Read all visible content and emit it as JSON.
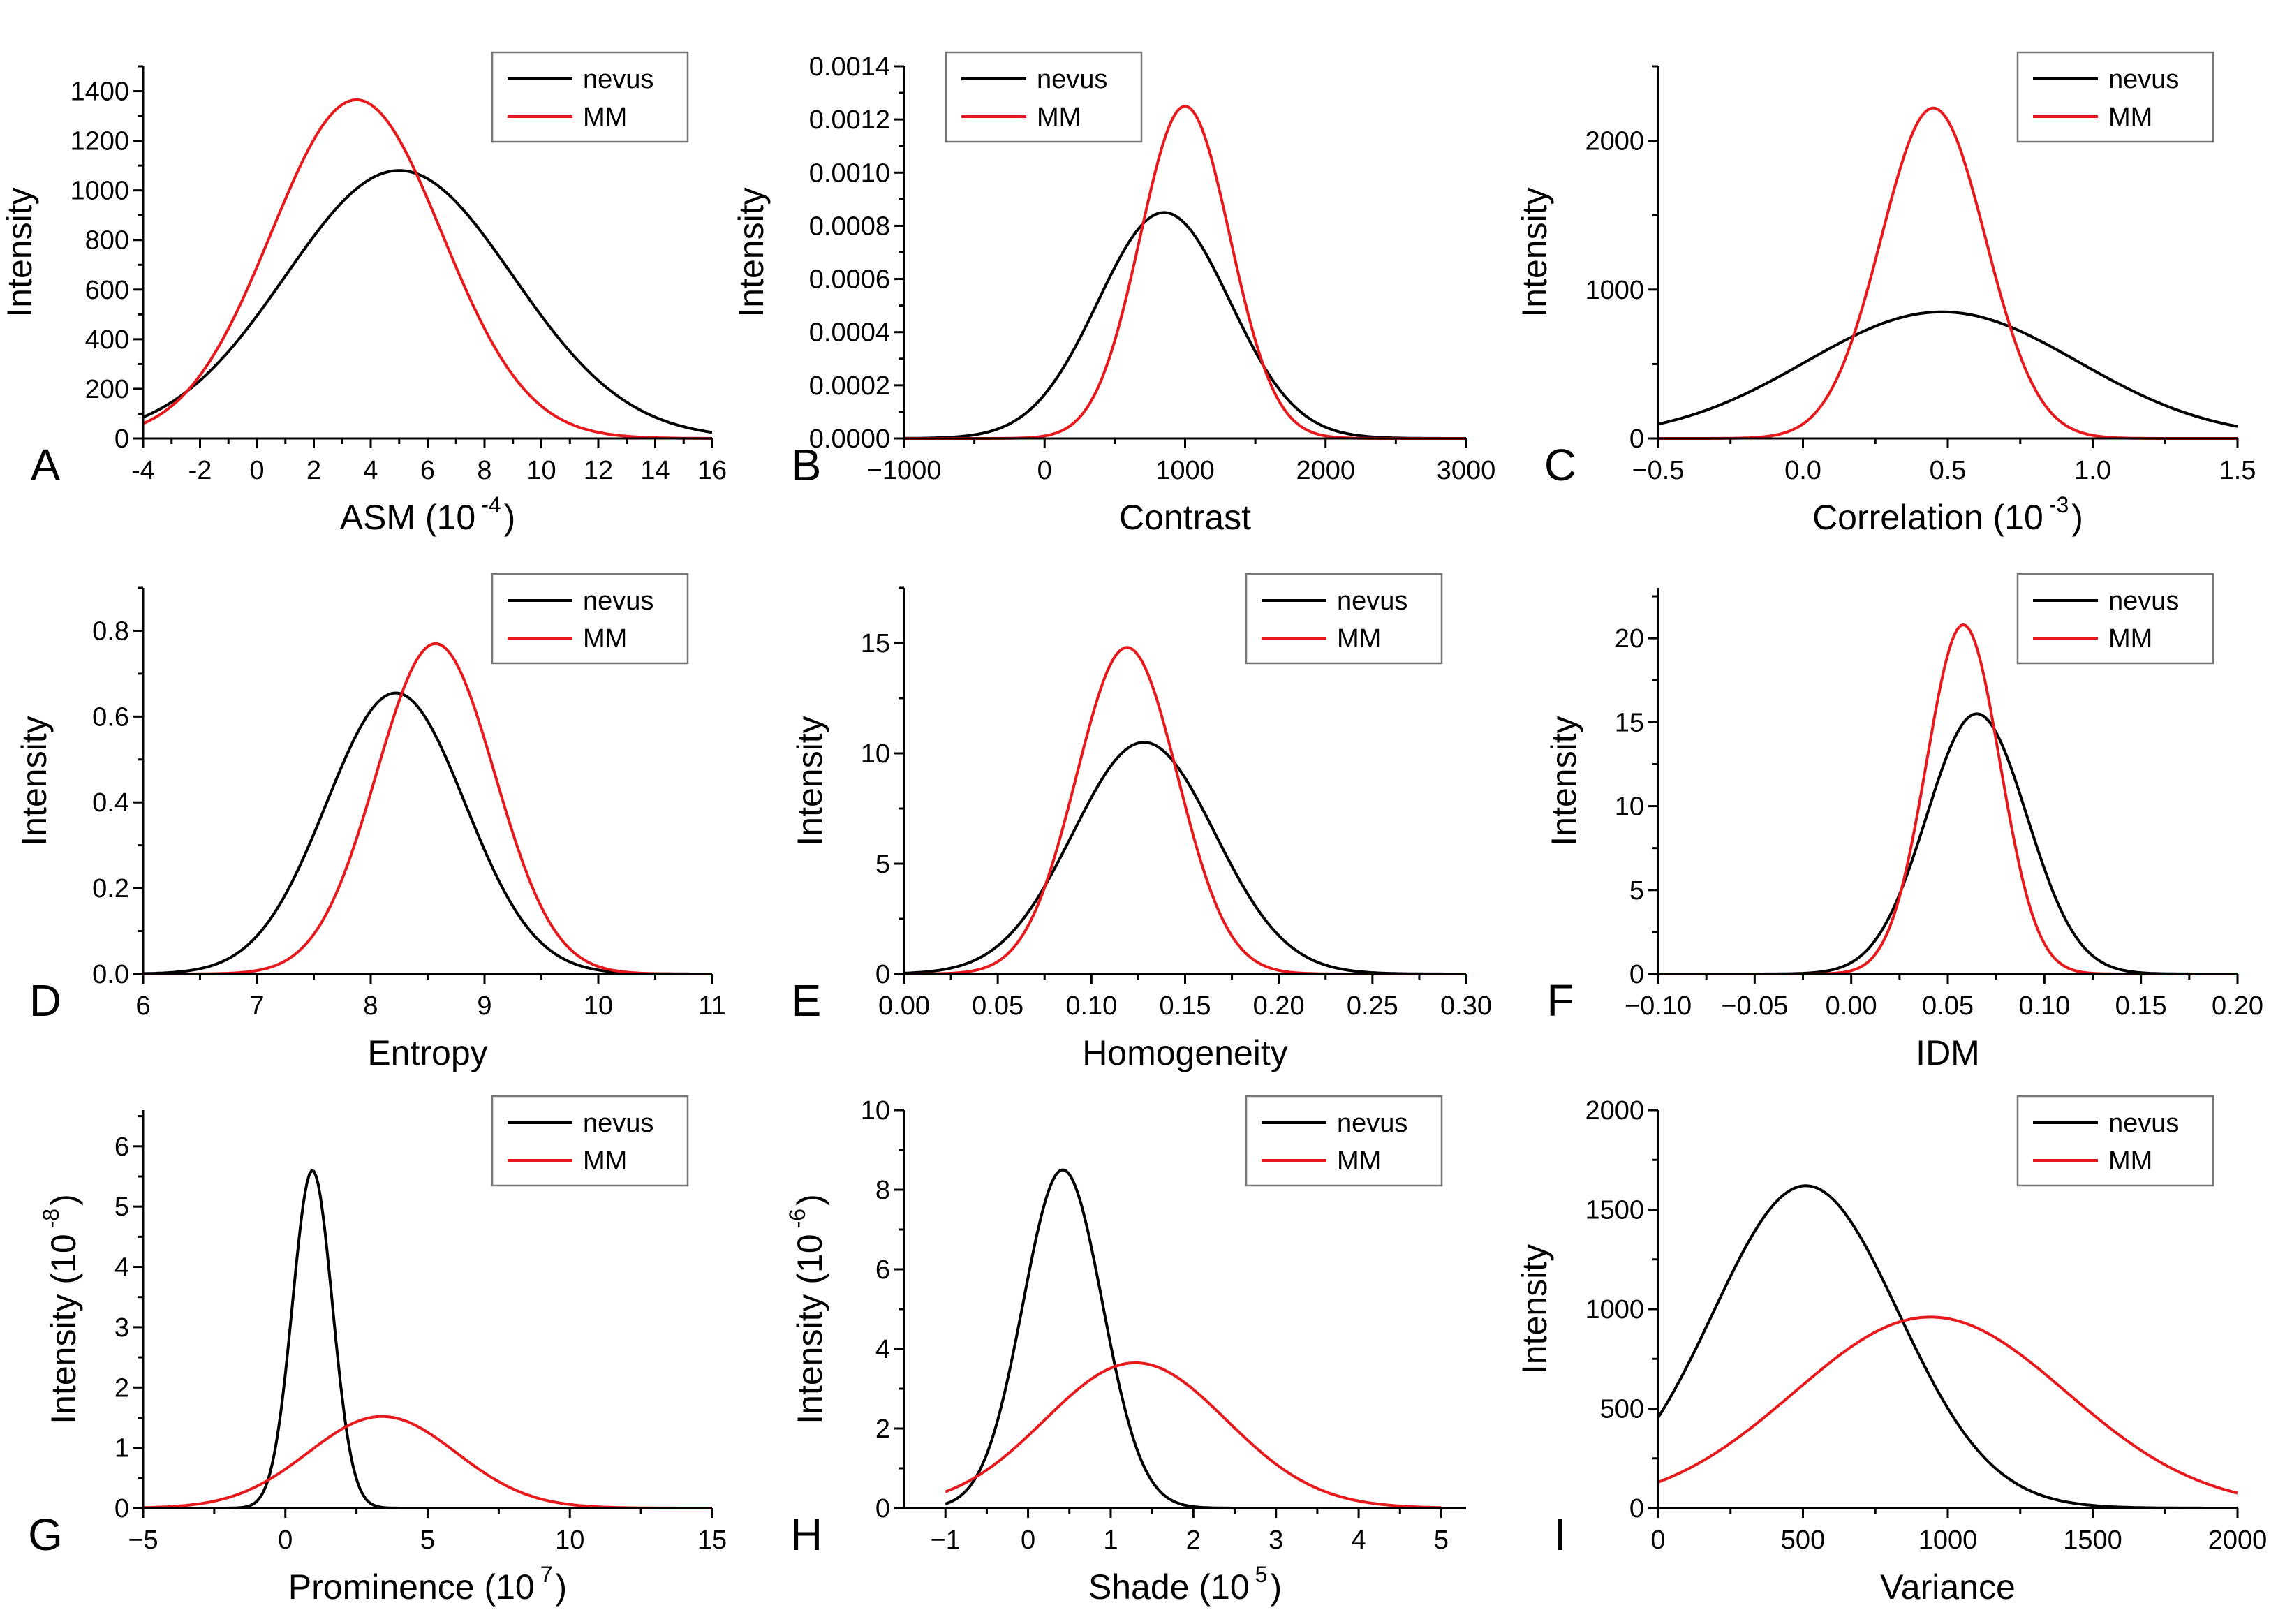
{
  "figure_title": "",
  "colors": {
    "nevus": "#000000",
    "MM": "#e8191c"
  },
  "chart_data": [
    {
      "panel": "A",
      "type": "line",
      "xlabel": "ASM (10",
      "xlabel_exp": "-4",
      "xlabel_close": ")",
      "ylabel": "Intensity",
      "ylabel_exp": "",
      "ylabel_close": "",
      "xlim": [
        -4,
        16
      ],
      "ylim": [
        0,
        1500
      ],
      "xticks": [
        -4,
        -2,
        0,
        2,
        4,
        6,
        8,
        10,
        12,
        14,
        16
      ],
      "xtick_labels": [
        "-4",
        "-2",
        "0",
        "2",
        "4",
        "6",
        "8",
        "10",
        "12",
        "14",
        "16"
      ],
      "yticks": [
        0,
        200,
        400,
        600,
        800,
        1000,
        1200,
        1400
      ],
      "ytick_labels": [
        "0",
        "200",
        "400",
        "600",
        "800",
        "1000",
        "1200",
        "1400"
      ],
      "legend": [
        "nevus",
        "MM"
      ],
      "legend_position": "top-right",
      "series": [
        {
          "name": "nevus",
          "mean": 5.0,
          "sd": 4.0,
          "peak": 1080
        },
        {
          "name": "MM",
          "mean": 3.5,
          "sd": 3.0,
          "peak": 1365
        }
      ]
    },
    {
      "panel": "B",
      "type": "line",
      "xlabel": "Contrast",
      "xlabel_exp": "",
      "xlabel_close": "",
      "ylabel": "Intensity",
      "ylabel_exp": "",
      "ylabel_close": "",
      "xlim": [
        -1000,
        3000
      ],
      "ylim": [
        0,
        0.0014
      ],
      "xticks": [
        -1000,
        0,
        1000,
        2000,
        3000
      ],
      "xtick_labels": [
        "−1000",
        "0",
        "1000",
        "2000",
        "3000"
      ],
      "yticks": [
        0,
        0.0002,
        0.0004,
        0.0006,
        0.0008,
        0.001,
        0.0012,
        0.0014
      ],
      "ytick_labels": [
        "0.0000",
        "0.0002",
        "0.0004",
        "0.0006",
        "0.0008",
        "0.0010",
        "0.0012",
        "0.0014"
      ],
      "legend": [
        "nevus",
        "MM"
      ],
      "legend_position": "top-left",
      "series": [
        {
          "name": "nevus",
          "mean": 850,
          "sd": 470,
          "peak": 0.00085
        },
        {
          "name": "MM",
          "mean": 1000,
          "sd": 320,
          "peak": 0.00125
        }
      ]
    },
    {
      "panel": "C",
      "type": "line",
      "xlabel": "Correlation (10",
      "xlabel_exp": "-3",
      "xlabel_close": ")",
      "ylabel": "Intensity",
      "ylabel_exp": "",
      "ylabel_close": "",
      "xlim": [
        -0.5,
        1.5
      ],
      "ylim": [
        0,
        2500
      ],
      "xticks": [
        -0.5,
        0.0,
        0.5,
        1.0,
        1.5
      ],
      "xtick_labels": [
        "−0.5",
        "0.0",
        "0.5",
        "1.0",
        "1.5"
      ],
      "yticks": [
        0,
        1000,
        2000
      ],
      "ytick_labels": [
        "0",
        "1000",
        "2000"
      ],
      "legend": [
        "nevus",
        "MM"
      ],
      "legend_position": "top-right",
      "series": [
        {
          "name": "nevus",
          "mean": 0.48,
          "sd": 0.47,
          "peak": 850
        },
        {
          "name": "MM",
          "mean": 0.45,
          "sd": 0.18,
          "peak": 2220
        }
      ]
    },
    {
      "panel": "D",
      "type": "line",
      "xlabel": "Entropy",
      "xlabel_exp": "",
      "xlabel_close": "",
      "ylabel": "Intensity",
      "ylabel_exp": "",
      "ylabel_close": "",
      "xlim": [
        6,
        11
      ],
      "ylim": [
        0,
        0.9
      ],
      "xticks": [
        6,
        7,
        8,
        9,
        10,
        11
      ],
      "xtick_labels": [
        "6",
        "7",
        "8",
        "9",
        "10",
        "11"
      ],
      "yticks": [
        0,
        0.2,
        0.4,
        0.6,
        0.8
      ],
      "ytick_labels": [
        "0.0",
        "0.2",
        "0.4",
        "0.6",
        "0.8"
      ],
      "legend": [
        "nevus",
        "MM"
      ],
      "legend_position": "top-right",
      "series": [
        {
          "name": "nevus",
          "mean": 8.22,
          "sd": 0.61,
          "peak": 0.655
        },
        {
          "name": "MM",
          "mean": 8.57,
          "sd": 0.52,
          "peak": 0.77
        }
      ]
    },
    {
      "panel": "E",
      "type": "line",
      "xlabel": "Homogeneity",
      "xlabel_exp": "",
      "xlabel_close": "",
      "ylabel": "Intensity",
      "ylabel_exp": "",
      "ylabel_close": "",
      "xlim": [
        0,
        0.3
      ],
      "ylim": [
        0,
        17.5
      ],
      "xticks": [
        0,
        0.05,
        0.1,
        0.15,
        0.2,
        0.25,
        0.3
      ],
      "xtick_labels": [
        "0.00",
        "0.05",
        "0.10",
        "0.15",
        "0.20",
        "0.25",
        "0.30"
      ],
      "yticks": [
        0,
        5,
        10,
        15
      ],
      "ytick_labels": [
        "0",
        "5",
        "10",
        "15"
      ],
      "legend": [
        "nevus",
        "MM"
      ],
      "legend_position": "top-right",
      "series": [
        {
          "name": "nevus",
          "mean": 0.128,
          "sd": 0.038,
          "peak": 10.5
        },
        {
          "name": "MM",
          "mean": 0.119,
          "sd": 0.027,
          "peak": 14.8
        }
      ]
    },
    {
      "panel": "F",
      "type": "line",
      "xlabel": "IDM",
      "xlabel_exp": "",
      "xlabel_close": "",
      "ylabel": "Intensity",
      "ylabel_exp": "",
      "ylabel_close": "",
      "xlim": [
        -0.1,
        0.2
      ],
      "ylim": [
        0,
        23
      ],
      "xticks": [
        -0.1,
        -0.05,
        0,
        0.05,
        0.1,
        0.15,
        0.2
      ],
      "xtick_labels": [
        "−0.10",
        "−0.05",
        "0.00",
        "0.05",
        "0.10",
        "0.15",
        "0.20"
      ],
      "yticks": [
        0,
        5,
        10,
        15,
        20
      ],
      "ytick_labels": [
        "0",
        "5",
        "10",
        "15",
        "20"
      ],
      "legend": [
        "nevus",
        "MM"
      ],
      "legend_position": "top-right",
      "series": [
        {
          "name": "nevus",
          "mean": 0.065,
          "sd": 0.026,
          "peak": 15.5
        },
        {
          "name": "MM",
          "mean": 0.058,
          "sd": 0.019,
          "peak": 20.8
        }
      ]
    },
    {
      "panel": "G",
      "type": "line",
      "xlabel": "Prominence (10",
      "xlabel_exp": "7",
      "xlabel_close": ")",
      "ylabel": "Intensity (10",
      "ylabel_exp": "-8",
      "ylabel_close": ")",
      "xlim": [
        -5,
        15
      ],
      "ylim": [
        0,
        6.6
      ],
      "xticks": [
        -5,
        0,
        5,
        10,
        15
      ],
      "xtick_labels": [
        "−5",
        "0",
        "5",
        "10",
        "15"
      ],
      "yticks": [
        0,
        1,
        2,
        3,
        4,
        5,
        6
      ],
      "ytick_labels": [
        "0",
        "1",
        "2",
        "3",
        "4",
        "5",
        "6"
      ],
      "legend": [
        "nevus",
        "MM"
      ],
      "legend_position": "top-right",
      "series": [
        {
          "name": "nevus",
          "mean": 0.95,
          "sd": 0.7,
          "peak": 5.6
        },
        {
          "name": "MM",
          "mean": 3.4,
          "sd": 2.6,
          "peak": 1.52
        }
      ]
    },
    {
      "panel": "H",
      "type": "line",
      "xlabel": "Shade (10",
      "xlabel_exp": "5",
      "xlabel_close": ")",
      "ylabel": "Intensity (10",
      "ylabel_exp": "-6",
      "ylabel_close": ")",
      "xlim": [
        -1.5,
        5.3
      ],
      "ylim": [
        0,
        10
      ],
      "xticks": [
        -1,
        0,
        1,
        2,
        3,
        4,
        5
      ],
      "xtick_labels": [
        "−1",
        "0",
        "1",
        "2",
        "3",
        "4",
        "5"
      ],
      "yticks": [
        0,
        2,
        4,
        6,
        8,
        10
      ],
      "ytick_labels": [
        "0",
        "2",
        "4",
        "6",
        "8",
        "10"
      ],
      "legend": [
        "nevus",
        "MM"
      ],
      "legend_position": "top-right",
      "series": [
        {
          "name": "nevus",
          "mean": 0.42,
          "sd": 0.48,
          "peak": 8.5,
          "x_range": [
            -1,
            5
          ]
        },
        {
          "name": "MM",
          "mean": 1.3,
          "sd": 1.1,
          "peak": 3.65,
          "x_range": [
            -1,
            5
          ]
        }
      ]
    },
    {
      "panel": "I",
      "type": "line",
      "xlabel": "Variance",
      "xlabel_exp": "",
      "xlabel_close": "",
      "ylabel": "Intensity",
      "ylabel_exp": "",
      "ylabel_close": "",
      "xlim": [
        0,
        2000
      ],
      "ylim": [
        0,
        2000
      ],
      "xticks": [
        0,
        500,
        1000,
        1500,
        2000
      ],
      "xtick_labels": [
        "0",
        "500",
        "1000",
        "1500",
        "2000"
      ],
      "yticks": [
        0,
        500,
        1000,
        1500,
        2000
      ],
      "ytick_labels": [
        "0",
        "500",
        "1000",
        "1500",
        "2000"
      ],
      "legend": [
        "nevus",
        "MM"
      ],
      "legend_position": "top-right",
      "series": [
        {
          "name": "nevus",
          "mean": 510,
          "sd": 320,
          "peak": 1620
        },
        {
          "name": "MM",
          "mean": 940,
          "sd": 470,
          "peak": 960
        }
      ]
    }
  ]
}
